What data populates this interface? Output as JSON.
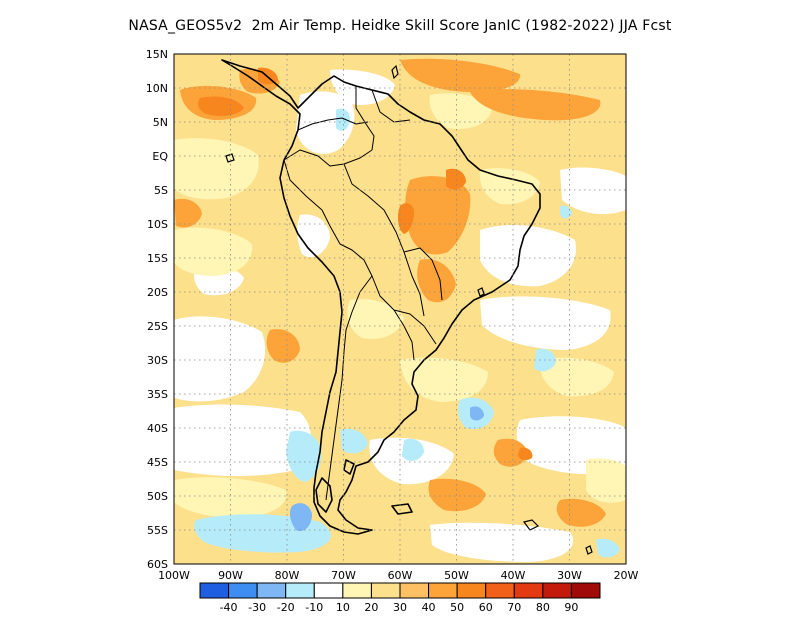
{
  "title": "NASA_GEOS5v2  2m Air Temp. Heidke Skill Score JanIC (1982-2022) JJA Fcst",
  "map": {
    "lat_labels": [
      "15N",
      "10N",
      "5N",
      "EQ",
      "5S",
      "10S",
      "15S",
      "20S",
      "25S",
      "30S",
      "35S",
      "40S",
      "45S",
      "50S",
      "55S",
      "60S"
    ],
    "lon_labels": [
      "100W",
      "90W",
      "80W",
      "70W",
      "60W",
      "50W",
      "40W",
      "30W",
      "20W"
    ],
    "grid": "dotted"
  },
  "colorbar": {
    "labels": [
      "-40",
      "-30",
      "-20",
      "-10",
      "10",
      "20",
      "30",
      "40",
      "50",
      "60",
      "70",
      "80",
      "90"
    ],
    "colors": [
      "#1f5ee0",
      "#3d8ef0",
      "#7fb6f4",
      "#b6ecfa",
      "#ffffff",
      "#fff5b4",
      "#fde08c",
      "#fdc062",
      "#fca43a",
      "#f8861e",
      "#f2611a",
      "#e33a12",
      "#c41a0c",
      "#a00a08"
    ]
  }
}
